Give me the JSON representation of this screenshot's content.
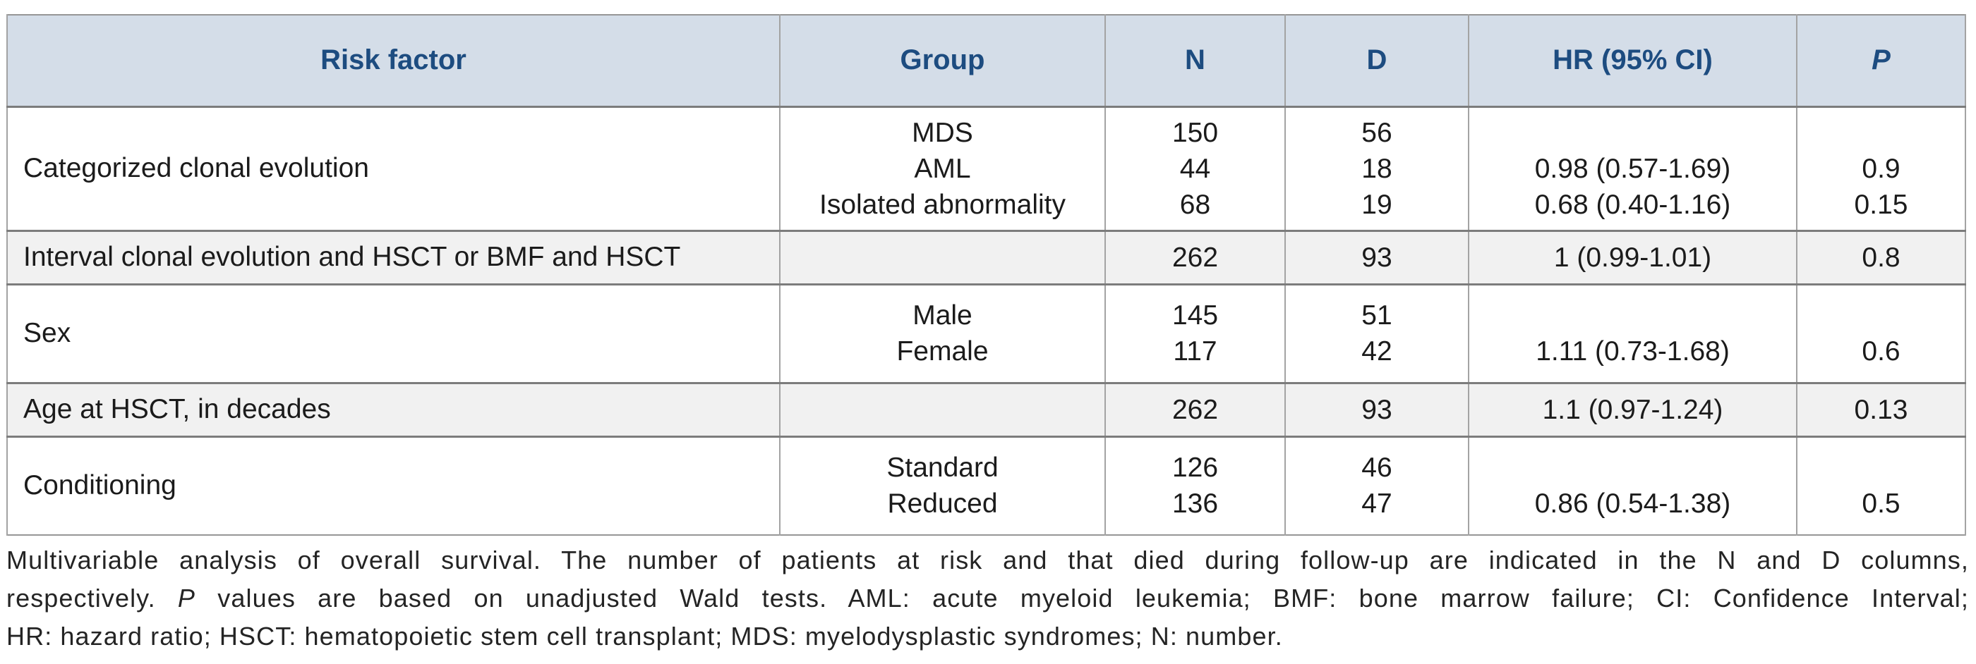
{
  "colors": {
    "header_bg": "#d4dde8",
    "header_text": "#1d4c80",
    "shaded_row_bg": "#f1f1f1",
    "group_separator_border": "#7c7c7c",
    "cell_border": "#a3a3a3",
    "body_text": "#1b1b1b"
  },
  "table": {
    "columns": [
      "Risk factor",
      "Group",
      "N",
      "D",
      "HR (95% CI)",
      "P"
    ],
    "rows": [
      {
        "risk_factor": "Categorized clonal evolution",
        "group": [
          "MDS",
          "AML",
          "Isolated abnormality"
        ],
        "n": [
          "150",
          "44",
          "68"
        ],
        "d": [
          "56",
          "18",
          "19"
        ],
        "hr": [
          "",
          "0.98 (0.57-1.69)",
          "0.68 (0.40-1.16)"
        ],
        "p": [
          "",
          "0.9",
          "0.15"
        ],
        "shaded": false
      },
      {
        "risk_factor": "Interval clonal evolution and HSCT or BMF and HSCT",
        "group": [
          ""
        ],
        "n": [
          "262"
        ],
        "d": [
          "93"
        ],
        "hr": [
          "1 (0.99-1.01)"
        ],
        "p": [
          "0.8"
        ],
        "shaded": true
      },
      {
        "risk_factor": "Sex",
        "group": [
          "Male",
          "Female"
        ],
        "n": [
          "145",
          "117"
        ],
        "d": [
          "51",
          "42"
        ],
        "hr": [
          "",
          "1.11 (0.73-1.68)"
        ],
        "p": [
          "",
          "0.6"
        ],
        "shaded": false
      },
      {
        "risk_factor": "Age at HSCT, in decades",
        "group": [
          ""
        ],
        "n": [
          "262"
        ],
        "d": [
          "93"
        ],
        "hr": [
          "1.1 (0.97-1.24)"
        ],
        "p": [
          "0.13"
        ],
        "shaded": true
      },
      {
        "risk_factor": "Conditioning",
        "group": [
          "Standard",
          "Reduced"
        ],
        "n": [
          "126",
          "136"
        ],
        "d": [
          "46",
          "47"
        ],
        "hr": [
          "",
          "0.86 (0.54-1.38)"
        ],
        "p": [
          "",
          "0.5"
        ],
        "shaded": false
      }
    ]
  },
  "footnote": {
    "line1": "Multivariable analysis of overall survival. The number of patients at risk and that died during follow-up are indicated in the N and D columns,",
    "line2_pre": "respectively. ",
    "line2_italic": "P",
    "line2_post": " values are based on unadjusted Wald tests. AML: acute myeloid leukemia; BMF: bone marrow failure; CI: Confidence Interval;",
    "line3": "HR: hazard ratio; HSCT: hematopoietic stem cell transplant; MDS: myelodysplastic syndromes; N: number."
  }
}
